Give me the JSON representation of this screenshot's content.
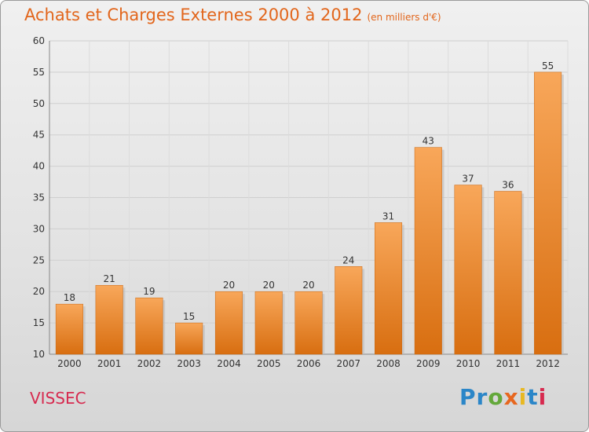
{
  "title": "Achats et Charges Externes 2000 à 2012",
  "subtitle": "(en milliers d'€)",
  "place": "VISSEC",
  "logo": [
    "P",
    "r",
    "o",
    "x",
    "i",
    "t",
    "i"
  ],
  "colors": {
    "bar_top": "#f8a75a",
    "bar_bottom": "#d86e10",
    "title": "#e2661c",
    "place": "#d72a4f"
  },
  "chart_data": {
    "type": "bar",
    "title": "Achats et Charges Externes 2000 à 2012",
    "subtitle": "(en milliers d'€)",
    "categories": [
      "2000",
      "2001",
      "2002",
      "2003",
      "2004",
      "2005",
      "2006",
      "2007",
      "2008",
      "2009",
      "2010",
      "2011",
      "2012"
    ],
    "values": [
      18,
      21,
      19,
      15,
      20,
      20,
      20,
      24,
      31,
      43,
      37,
      36,
      55
    ],
    "ylim": [
      10,
      60
    ],
    "yticks": [
      10,
      15,
      20,
      25,
      30,
      35,
      40,
      45,
      50,
      55,
      60
    ],
    "grid": true,
    "legend": "none"
  }
}
